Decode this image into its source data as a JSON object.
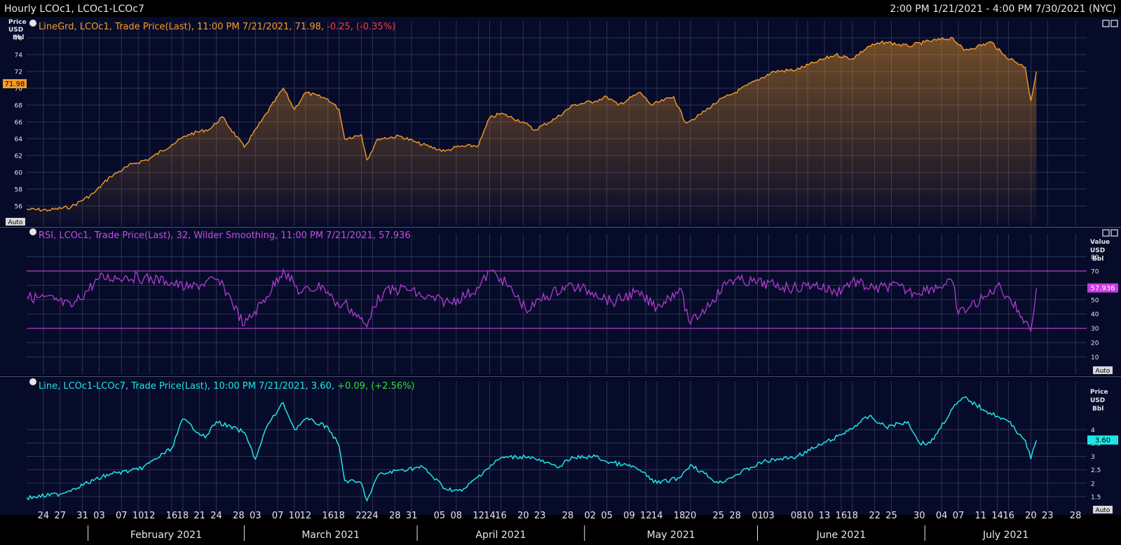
{
  "header": {
    "title": "Hourly LCOc1, LCOc1-LCOc7",
    "date_range": "2:00 PM 1/21/2021 - 4:00 PM 7/30/2021 (NYC)"
  },
  "icons": {
    "panel_controls": "restore-icon",
    "legend_bullet": "settings-dot-icon"
  },
  "colors": {
    "background": "#000000",
    "panel_bg": "#070b2a",
    "grid": "#2c3350",
    "price_line": "#f39c26",
    "rsi_line": "#b13cd0",
    "spread_line": "#1ee6e6",
    "negative": "#ff3b3b",
    "positive": "#2fe02f"
  },
  "panels": {
    "price": {
      "legend_main": "LineGrd, LCOc1, Trade Price(Last), 11:00 PM 7/21/2021, 71.98,",
      "legend_change": " -0.25, (-0.35%)",
      "axis_title": [
        "Price",
        "USD",
        "Bbl"
      ],
      "last_value_tag": "71.98",
      "auto_label": "Auto"
    },
    "rsi": {
      "legend_main": "RSI, LCOc1, Trade Price(Last),  32, Wilder Smoothing, 11:00 PM 7/21/2021, 57.936",
      "axis_title": [
        "Value",
        "USD",
        "Bbl"
      ],
      "last_value_tag": "57.936",
      "auto_label": "Auto"
    },
    "spread": {
      "legend_main": "Line, LCOc1-LCOc7, Trade Price(Last), 10:00 PM 7/21/2021, 3.60,",
      "legend_change": " +0.09, (+2.56%)",
      "axis_title": [
        "Price",
        "USD",
        "Bbl"
      ],
      "last_value_tag": "3.60",
      "auto_label": "Auto"
    }
  },
  "x_axis": {
    "day_ticks": [
      "24",
      "27",
      "31",
      "03",
      "07",
      "10",
      "12",
      "16",
      "18",
      "21",
      "24",
      "28",
      "03",
      "07",
      "10",
      "12",
      "16",
      "18",
      "22",
      "24",
      "28",
      "31",
      "05",
      "08",
      "12",
      "14",
      "16",
      "20",
      "23",
      "28",
      "02",
      "05",
      "09",
      "12",
      "14",
      "18",
      "20",
      "25",
      "28",
      "01",
      "03",
      "08",
      "10",
      "13",
      "16",
      "18",
      "22",
      "25",
      "30",
      "04",
      "07",
      "11",
      "14",
      "16",
      "20",
      "23",
      "28"
    ],
    "months": [
      "February 2021",
      "March 2021",
      "April 2021",
      "May 2021",
      "June 2021",
      "July 2021"
    ]
  },
  "chart_data": [
    {
      "type": "area",
      "series": [
        {
          "name": "LCOc1",
          "x": [
            "2021-01-21",
            "2021-01-25",
            "2021-01-29",
            "2021-02-02",
            "2021-02-05",
            "2021-02-09",
            "2021-02-12",
            "2021-02-16",
            "2021-02-19",
            "2021-02-23",
            "2021-02-25",
            "2021-03-01",
            "2021-03-04",
            "2021-03-08",
            "2021-03-10",
            "2021-03-12",
            "2021-03-16",
            "2021-03-18",
            "2021-03-19",
            "2021-03-22",
            "2021-03-23",
            "2021-03-25",
            "2021-03-29",
            "2021-04-01",
            "2021-04-06",
            "2021-04-08",
            "2021-04-12",
            "2021-04-14",
            "2021-04-16",
            "2021-04-20",
            "2021-04-22",
            "2021-04-26",
            "2021-04-29",
            "2021-05-03",
            "2021-05-05",
            "2021-05-07",
            "2021-05-11",
            "2021-05-13",
            "2021-05-17",
            "2021-05-19",
            "2021-05-21",
            "2021-05-25",
            "2021-05-28",
            "2021-06-01",
            "2021-06-04",
            "2021-06-08",
            "2021-06-11",
            "2021-06-15",
            "2021-06-18",
            "2021-06-21",
            "2021-06-24",
            "2021-06-28",
            "2021-07-01",
            "2021-07-06",
            "2021-07-08",
            "2021-07-13",
            "2021-07-15",
            "2021-07-19",
            "2021-07-20",
            "2021-07-21"
          ],
          "values": [
            55.6,
            55.5,
            55.9,
            57.5,
            59.5,
            61.0,
            61.6,
            63.3,
            64.5,
            65.2,
            66.6,
            63.0,
            66.0,
            70.0,
            67.5,
            69.5,
            68.7,
            67.5,
            64.0,
            64.5,
            61.5,
            64.0,
            64.3,
            63.5,
            62.5,
            63.0,
            63.2,
            66.5,
            67.0,
            66.0,
            65.0,
            66.5,
            68.0,
            68.5,
            69.0,
            68.0,
            69.5,
            68.0,
            69.0,
            66.0,
            66.5,
            68.5,
            69.5,
            71.0,
            72.0,
            72.2,
            73.0,
            74.0,
            73.5,
            75.0,
            75.5,
            75.0,
            75.5,
            76.0,
            74.5,
            75.5,
            74.0,
            72.5,
            68.5,
            71.98
          ]
        }
      ],
      "ylabel": "Price USD Bbl",
      "ylim": [
        54,
        77
      ],
      "yticks": [
        56,
        58,
        60,
        62,
        64,
        66,
        68,
        70,
        72,
        74,
        76
      ],
      "xlim": [
        "2021-01-21",
        "2021-07-30"
      ],
      "grid": true
    },
    {
      "type": "line",
      "series": [
        {
          "name": "RSI",
          "x": [
            "2021-01-21",
            "2021-01-26",
            "2021-01-29",
            "2021-02-03",
            "2021-02-08",
            "2021-02-11",
            "2021-02-15",
            "2021-02-19",
            "2021-02-24",
            "2021-02-26",
            "2021-03-01",
            "2021-03-05",
            "2021-03-08",
            "2021-03-11",
            "2021-03-15",
            "2021-03-17",
            "2021-03-18",
            "2021-03-19",
            "2021-03-23",
            "2021-03-24",
            "2021-03-26",
            "2021-03-30",
            "2021-04-02",
            "2021-04-07",
            "2021-04-12",
            "2021-04-14",
            "2021-04-16",
            "2021-04-21",
            "2021-04-23",
            "2021-04-28",
            "2021-05-03",
            "2021-05-06",
            "2021-05-10",
            "2021-05-14",
            "2021-05-18",
            "2021-05-20",
            "2021-05-24",
            "2021-05-27",
            "2021-06-01",
            "2021-06-04",
            "2021-06-08",
            "2021-06-11",
            "2021-06-15",
            "2021-06-18",
            "2021-06-22",
            "2021-06-25",
            "2021-06-29",
            "2021-07-02",
            "2021-07-06",
            "2021-07-07",
            "2021-07-12",
            "2021-07-14",
            "2021-07-16",
            "2021-07-19",
            "2021-07-20",
            "2021-07-21"
          ],
          "values": [
            52,
            50,
            45,
            65,
            66,
            65,
            63,
            58,
            64,
            55,
            32,
            52,
            71,
            55,
            60,
            50,
            45,
            48,
            31,
            45,
            55,
            58,
            52,
            48,
            58,
            70,
            65,
            42,
            50,
            60,
            55,
            48,
            55,
            45,
            58,
            33,
            50,
            64,
            62,
            60,
            58,
            61,
            55,
            63,
            57,
            60,
            55,
            58,
            62,
            40,
            52,
            60,
            52,
            35,
            28,
            57.936
          ]
        }
      ],
      "ylabel": "Value USD Bbl",
      "ylim": [
        0,
        90
      ],
      "yticks": [
        10,
        20,
        30,
        40,
        50,
        60,
        70,
        80
      ],
      "reference_lines": [
        30,
        70
      ],
      "grid": true
    },
    {
      "type": "line",
      "series": [
        {
          "name": "LCOc1-LCOc7",
          "x": [
            "2021-01-21",
            "2021-01-27",
            "2021-02-02",
            "2021-02-05",
            "2021-02-10",
            "2021-02-12",
            "2021-02-16",
            "2021-02-18",
            "2021-02-22",
            "2021-02-24",
            "2021-03-01",
            "2021-03-03",
            "2021-03-05",
            "2021-03-08",
            "2021-03-10",
            "2021-03-12",
            "2021-03-16",
            "2021-03-18",
            "2021-03-19",
            "2021-03-22",
            "2021-03-23",
            "2021-03-25",
            "2021-03-29",
            "2021-04-02",
            "2021-04-06",
            "2021-04-09",
            "2021-04-13",
            "2021-04-16",
            "2021-04-21",
            "2021-04-26",
            "2021-04-29",
            "2021-05-03",
            "2021-05-05",
            "2021-05-10",
            "2021-05-14",
            "2021-05-18",
            "2021-05-20",
            "2021-05-25",
            "2021-05-28",
            "2021-06-02",
            "2021-06-08",
            "2021-06-11",
            "2021-06-16",
            "2021-06-21",
            "2021-06-24",
            "2021-06-28",
            "2021-06-30",
            "2021-07-02",
            "2021-07-06",
            "2021-07-08",
            "2021-07-12",
            "2021-07-14",
            "2021-07-16",
            "2021-07-19",
            "2021-07-20",
            "2021-07-21"
          ],
          "values": [
            1.45,
            1.6,
            2.1,
            2.35,
            2.5,
            2.75,
            3.3,
            4.4,
            3.7,
            4.3,
            3.9,
            2.9,
            4.1,
            5.0,
            4.0,
            4.4,
            4.1,
            3.4,
            2.1,
            2.0,
            1.35,
            2.3,
            2.5,
            2.6,
            1.8,
            1.7,
            2.45,
            2.95,
            3.0,
            2.6,
            2.95,
            3.0,
            2.8,
            2.6,
            2.0,
            2.2,
            2.7,
            2.0,
            2.3,
            2.8,
            3.0,
            3.3,
            3.8,
            4.5,
            4.1,
            4.3,
            3.5,
            3.5,
            4.8,
            5.2,
            4.7,
            4.5,
            4.3,
            3.6,
            2.9,
            3.6
          ]
        }
      ],
      "ylabel": "Price USD Bbl",
      "ylim": [
        1.0,
        5.5
      ],
      "yticks": [
        1.5,
        2,
        2.5,
        3,
        3.5,
        4
      ],
      "grid": true
    }
  ]
}
